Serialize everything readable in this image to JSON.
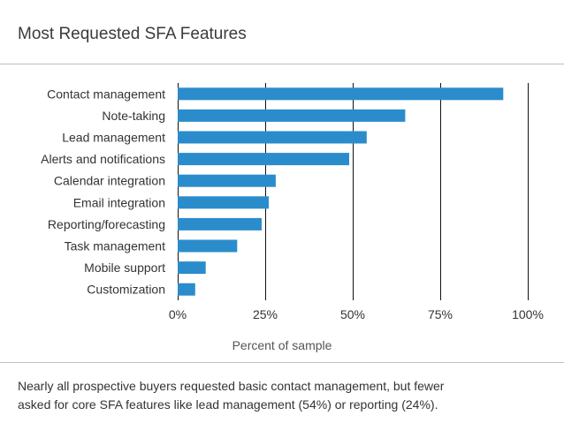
{
  "title": "Most Requested SFA Features",
  "caption": {
    "line1": "Nearly all prospective buyers requested basic contact management, but fewer",
    "line2": "asked for core SFA features like lead management (54%) or reporting (24%)."
  },
  "chart_data": {
    "type": "bar",
    "orientation": "horizontal",
    "categories": [
      "Contact management",
      "Note-taking",
      "Lead management",
      "Alerts and notifications",
      "Calendar integration",
      "Email integration",
      "Reporting/forecasting",
      "Task management",
      "Mobile support",
      "Customization"
    ],
    "values": [
      93,
      65,
      54,
      49,
      28,
      26,
      24,
      17,
      8,
      5
    ],
    "xlabel": "Percent of sample",
    "ylabel": "",
    "xlim": [
      0,
      100
    ],
    "xticks": [
      0,
      25,
      50,
      75,
      100
    ],
    "xtick_labels": [
      "0%",
      "25%",
      "50%",
      "75%",
      "100%"
    ],
    "grid": true,
    "bar_color": "#2b8ccc",
    "grid_color": "#111111"
  }
}
